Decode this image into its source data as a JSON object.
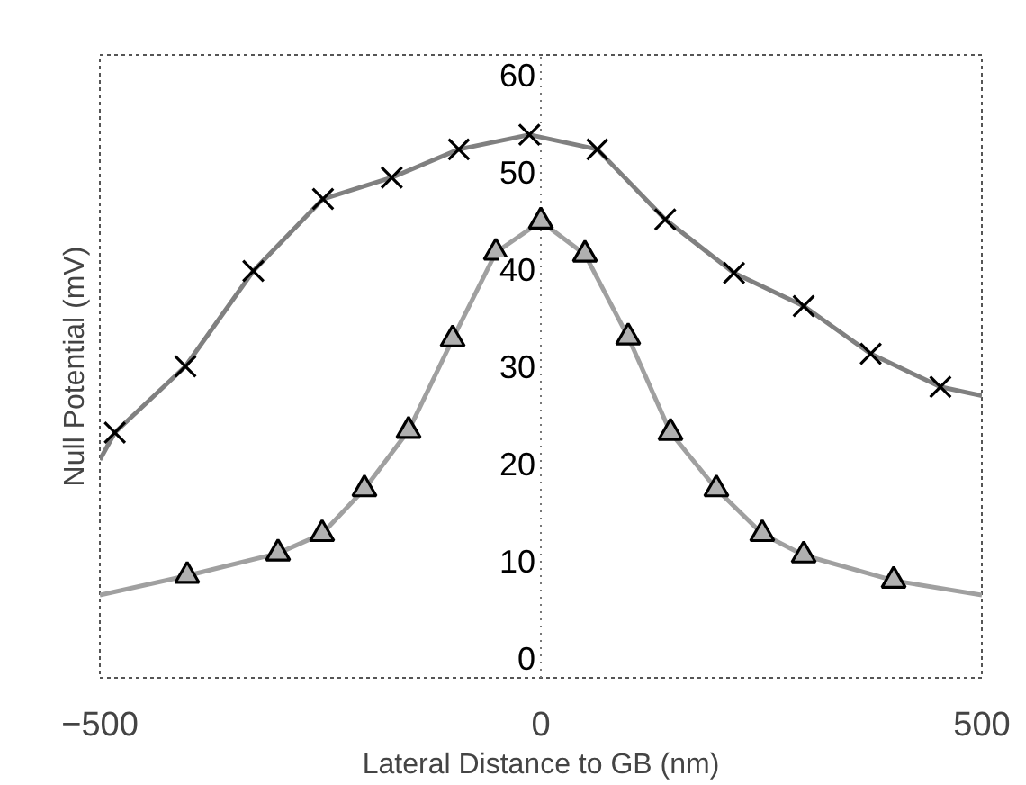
{
  "chart_data": {
    "type": "line",
    "xlabel": "Lateral Distance to GB (nm)",
    "ylabel": "Null Potential (mV)",
    "xlim": [
      -500,
      500
    ],
    "ylim": [
      -2,
      62
    ],
    "xticks": [
      -500,
      0,
      500
    ],
    "yticks": [
      0,
      10,
      20,
      30,
      40,
      50,
      60
    ],
    "grid": "x",
    "series": [
      {
        "color": "#808080",
        "marker": "none",
        "x": [
          -500,
          -483,
          -403,
          -326,
          -247,
          -169,
          -93,
          -13,
          64,
          141,
          219,
          298,
          374,
          453,
          500
        ],
        "values": [
          20.4,
          23.2,
          30.0,
          39.8,
          47.2,
          49.4,
          52.3,
          53.8,
          52.3,
          45.1,
          39.6,
          36.2,
          31.3,
          27.9,
          27.0
        ]
      },
      {
        "color": "#a0a0a0",
        "marker": "none",
        "x": [
          -500,
          -401,
          -298,
          -248,
          -200,
          -150,
          -100,
          -51,
          0,
          50,
          99,
          147,
          199,
          251,
          298,
          400,
          500
        ],
        "values": [
          6.5,
          8.5,
          10.8,
          12.8,
          17.4,
          23.4,
          32.8,
          41.7,
          44.9,
          41.5,
          33.0,
          23.2,
          17.4,
          12.8,
          10.6,
          8.0,
          6.5
        ]
      },
      {
        "type": "scatter",
        "color": "#000000",
        "marker": "cross",
        "x": [
          -483,
          -403,
          -326,
          -247,
          -169,
          -93,
          -13,
          64,
          141,
          219,
          298,
          374,
          453
        ],
        "values": [
          23.2,
          30.0,
          39.8,
          47.2,
          49.4,
          52.3,
          53.8,
          52.3,
          45.1,
          39.6,
          36.2,
          31.3,
          27.9
        ]
      },
      {
        "type": "scatter",
        "color": "#000000",
        "marker": "triangle",
        "x": [
          -401,
          -298,
          -248,
          -200,
          -150,
          -100,
          -51,
          0,
          50,
          99,
          147,
          199,
          251,
          298,
          400
        ],
        "values": [
          8.5,
          10.8,
          12.8,
          17.4,
          23.4,
          32.8,
          41.7,
          44.9,
          41.5,
          33.0,
          23.2,
          17.4,
          12.8,
          10.6,
          8.0
        ]
      }
    ]
  }
}
